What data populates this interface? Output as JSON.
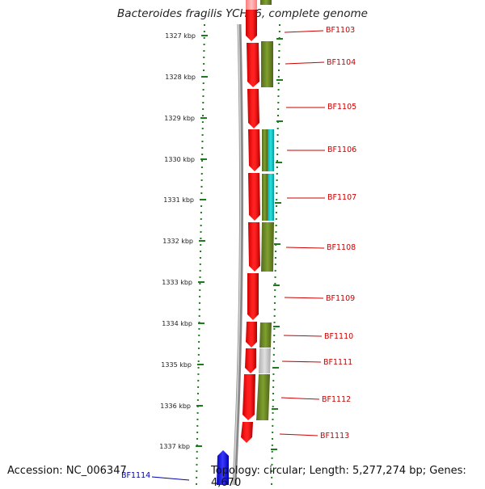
{
  "title": "Bacteroides fragilis YCH46, complete genome",
  "footer": {
    "accession": "Accession: NC_006347",
    "summary": "Topology: circular; Length: 5,277,274 bp; Genes: 4,670"
  },
  "colors": {
    "forward_gene": "#ff0000",
    "forward_gene_highlight": "#ff9a9a",
    "cog_green": "#6b8e23",
    "cog_cyan": "#00c8c8",
    "cog_gray": "#c8c8c8",
    "other_strand_gene": "#0000ff",
    "label_color": "#cc0000",
    "label_color_blue": "#0000aa",
    "tick_color": "#1e7a1e",
    "backbone": "#888888"
  },
  "ruler": {
    "unit": "kbp",
    "ticks": [
      "1327 kbp",
      "1328 kbp",
      "1329 kbp",
      "1330 kbp",
      "1331 kbp",
      "1332 kbp",
      "1333 kbp",
      "1334 kbp",
      "1335 kbp",
      "1336 kbp",
      "1337 kbp"
    ]
  },
  "genes": [
    {
      "label": "BF1103",
      "strand": "forward",
      "cog": "green",
      "partial": true
    },
    {
      "label": "BF1104",
      "strand": "forward",
      "cog": "green"
    },
    {
      "label": "BF1105",
      "strand": "forward",
      "cog": "none"
    },
    {
      "label": "BF1106",
      "strand": "forward",
      "cog": "green+cyan"
    },
    {
      "label": "BF1107",
      "strand": "forward",
      "cog": "green+cyan"
    },
    {
      "label": "BF1108",
      "strand": "forward",
      "cog": "green"
    },
    {
      "label": "BF1109",
      "strand": "forward",
      "cog": "none"
    },
    {
      "label": "BF1110",
      "strand": "forward",
      "cog": "green"
    },
    {
      "label": "BF1111",
      "strand": "forward",
      "cog": "gray"
    },
    {
      "label": "BF1112",
      "strand": "forward",
      "cog": "green"
    },
    {
      "label": "BF1113",
      "strand": "forward",
      "cog": "none"
    },
    {
      "label": "BF1114",
      "strand": "reverse",
      "cog": "none",
      "partial": true
    }
  ]
}
